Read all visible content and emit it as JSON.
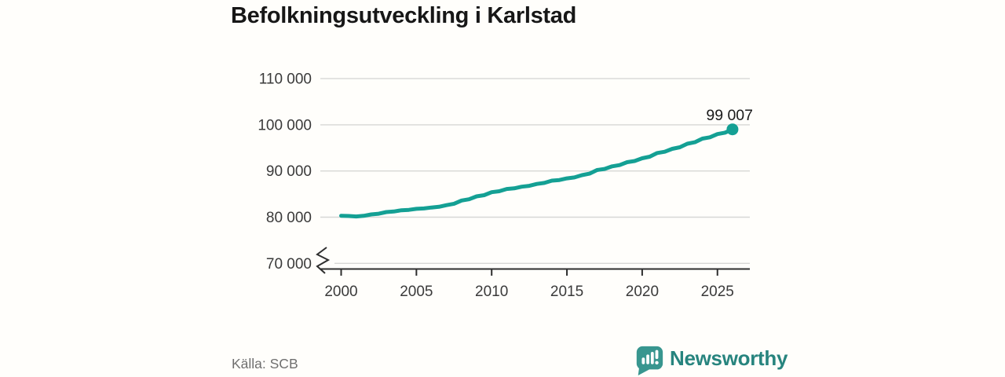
{
  "title": "Befolkningsutveckling i Karlstad",
  "source": "Källa: SCB",
  "branding": {
    "logo_text": "Newsworthy",
    "logo_icon": "newsworthy-speech-bubble-bar-chart-icon"
  },
  "colors": {
    "line": "#14a094",
    "end_dot": "#14a094",
    "grid": "#d7d7d5",
    "axis": "#2e2e2e",
    "title": "#171717",
    "tick_label": "#3a3a3a",
    "end_label": "#1a1a1a",
    "source": "#6f6f6f",
    "brand_icon": "#38968f",
    "brand_text": "#27847e",
    "background": "#fffefb"
  },
  "chart_data": {
    "type": "line",
    "title": "Befolkningsutveckling i Karlstad",
    "xlabel": "",
    "ylabel": "",
    "x": [
      2000,
      2001,
      2002,
      2003,
      2004,
      2005,
      2006,
      2007,
      2008,
      2009,
      2010,
      2011,
      2012,
      2013,
      2014,
      2015,
      2016,
      2017,
      2018,
      2019,
      2020,
      2021,
      2022,
      2023,
      2024,
      2025,
      2026
    ],
    "series": [
      {
        "name": "Befolkning",
        "values": [
          80300,
          80150,
          80600,
          81100,
          81500,
          81800,
          82100,
          82600,
          83600,
          84500,
          85400,
          86100,
          86600,
          87200,
          87900,
          88400,
          89100,
          90200,
          91000,
          91900,
          92750,
          93900,
          94800,
          95900,
          97000,
          98000,
          99007
        ]
      }
    ],
    "end_value": 99007,
    "end_label": "99 007",
    "yticks": {
      "values": [
        70000,
        80000,
        90000,
        100000,
        110000
      ],
      "labels": [
        "70 000",
        "80 000",
        "90 000",
        "100 000",
        "110 000"
      ]
    },
    "xticks": {
      "values": [
        2000,
        2005,
        2010,
        2015,
        2020,
        2025
      ],
      "labels": [
        "2000",
        "2005",
        "2010",
        "2015",
        "2020",
        "2025"
      ]
    },
    "xlim": [
      2000,
      2027.2
    ],
    "ylim": [
      70000,
      110000
    ],
    "axis_break": true,
    "grid": "horizontal",
    "legend": "none"
  }
}
